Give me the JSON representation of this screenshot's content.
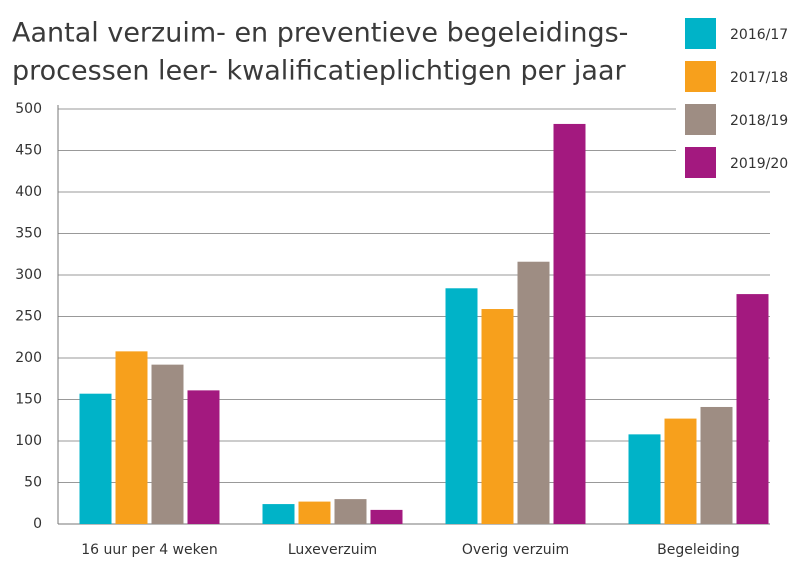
{
  "chart_data": {
    "type": "bar",
    "title": [
      "Aantal verzuim- en  preventieve begeleidings-",
      "processen leer- kwalificatieplichtigen per jaar"
    ],
    "categories": [
      "16 uur per 4 weken",
      "Luxeverzuim",
      "Overig verzuim",
      "Begeleiding"
    ],
    "series": [
      {
        "name": "2016/17",
        "color": "#00b3c8",
        "values": [
          157,
          24,
          284,
          108
        ]
      },
      {
        "name": "2017/18",
        "color": "#f7a01c",
        "values": [
          208,
          27,
          259,
          127
        ]
      },
      {
        "name": "2018/19",
        "color": "#9e8d83",
        "values": [
          192,
          30,
          316,
          141
        ]
      },
      {
        "name": "2019/20",
        "color": "#a3197f",
        "values": [
          161,
          17,
          482,
          277
        ]
      }
    ],
    "ylim": [
      0,
      500
    ],
    "yticks": [
      0,
      50,
      100,
      150,
      200,
      250,
      300,
      350,
      400,
      450,
      500
    ],
    "grid": true,
    "legend": "top-right"
  }
}
